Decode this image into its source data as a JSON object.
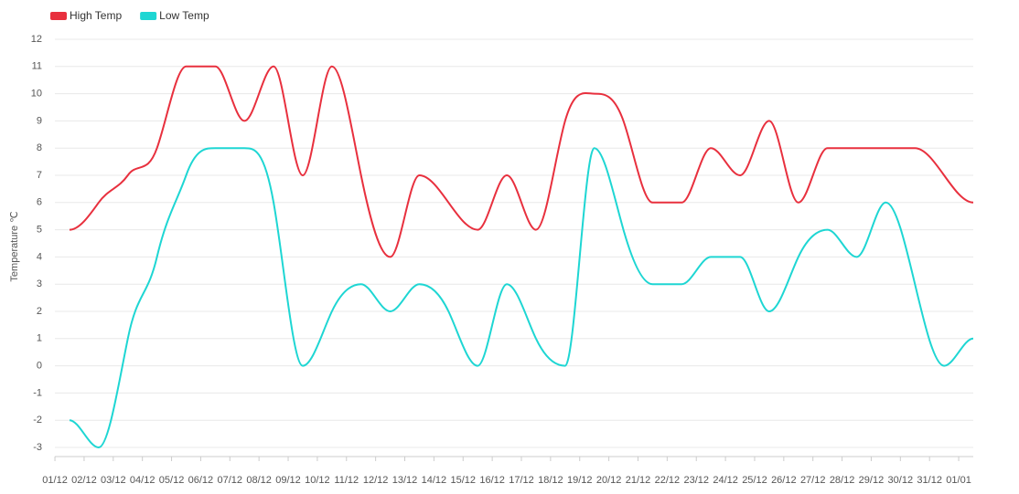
{
  "chart_data": {
    "type": "line",
    "y_label": "Temperature ℃",
    "categories": [
      "01/12",
      "02/12",
      "03/12",
      "04/12",
      "05/12",
      "06/12",
      "07/12",
      "08/12",
      "09/12",
      "10/12",
      "11/12",
      "12/12",
      "13/12",
      "14/12",
      "15/12",
      "16/12",
      "17/12",
      "18/12",
      "19/12",
      "20/12",
      "21/12",
      "22/12",
      "23/12",
      "24/12",
      "25/12",
      "26/12",
      "27/12",
      "28/12",
      "29/12",
      "30/12",
      "31/12",
      "01/01"
    ],
    "series": [
      {
        "name": "High Temp",
        "color": "#e8303e",
        "values": [
          5,
          6,
          7,
          8,
          11,
          11,
          9,
          11,
          7,
          11,
          7,
          4,
          7,
          6,
          5,
          7,
          5,
          9,
          10,
          9,
          6,
          6,
          8,
          7,
          9,
          6,
          8,
          8,
          8,
          8,
          7,
          6
        ]
      },
      {
        "name": "Low Temp",
        "color": "#1ed6d3",
        "values": [
          -2,
          -3,
          1,
          4,
          7,
          8,
          8,
          6,
          0,
          2,
          3,
          2,
          3,
          2,
          0,
          3,
          1,
          0,
          8,
          5,
          3,
          3,
          4,
          4,
          2,
          4,
          5,
          4,
          6,
          3,
          0,
          1
        ]
      }
    ],
    "ylim": [
      -3,
      12
    ],
    "yticks": [
      -3,
      -2,
      -1,
      0,
      1,
      2,
      3,
      4,
      5,
      6,
      7,
      8,
      9,
      10,
      11,
      12
    ],
    "grid": true
  }
}
